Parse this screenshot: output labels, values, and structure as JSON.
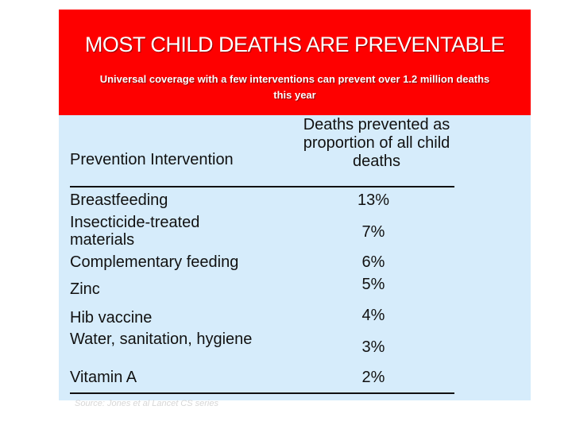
{
  "banner": {
    "title": "MOST CHILD DEATHS ARE PREVENTABLE",
    "subtitle": "Universal coverage with a few interventions can prevent over 1.2 million deaths this year"
  },
  "table": {
    "header_left": "Prevention Intervention",
    "header_right": "Deaths prevented as proportion of all child deaths",
    "rows": [
      {
        "intervention": "Breastfeeding",
        "value": "13%"
      },
      {
        "intervention": "Insecticide-treated materials",
        "value": "7%"
      },
      {
        "intervention": "Complementary feeding",
        "value": "6%"
      },
      {
        "intervention": "Zinc",
        "value": "5%"
      },
      {
        "intervention": "Hib vaccine",
        "value": "4%"
      },
      {
        "intervention": "Water, sanitation, hygiene",
        "value": "3%"
      },
      {
        "intervention": "Vitamin A",
        "value": "2%"
      }
    ]
  },
  "source": "Source: Jones et al Lancet CS series",
  "colors": {
    "banner_red": "#fe0000",
    "panel_blue": "#d6ecfb",
    "text": "#111111"
  }
}
